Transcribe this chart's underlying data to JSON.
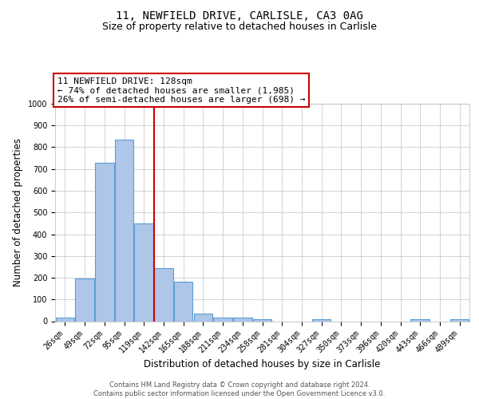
{
  "title1": "11, NEWFIELD DRIVE, CARLISLE, CA3 0AG",
  "title2": "Size of property relative to detached houses in Carlisle",
  "xlabel": "Distribution of detached houses by size in Carlisle",
  "ylabel": "Number of detached properties",
  "categories": [
    "26sqm",
    "49sqm",
    "72sqm",
    "95sqm",
    "119sqm",
    "142sqm",
    "165sqm",
    "188sqm",
    "211sqm",
    "234sqm",
    "258sqm",
    "281sqm",
    "304sqm",
    "327sqm",
    "350sqm",
    "373sqm",
    "396sqm",
    "420sqm",
    "443sqm",
    "466sqm",
    "489sqm"
  ],
  "values": [
    15,
    195,
    730,
    835,
    448,
    243,
    180,
    35,
    18,
    15,
    8,
    0,
    0,
    10,
    0,
    0,
    0,
    0,
    10,
    0,
    10
  ],
  "bar_color": "#aec6e8",
  "bar_edgecolor": "#5a9fd4",
  "bar_linewidth": 0.8,
  "vline_color": "#cc0000",
  "vline_linewidth": 1.5,
  "vline_pos": 4.5,
  "ylim": [
    0,
    1000
  ],
  "yticks": [
    0,
    100,
    200,
    300,
    400,
    500,
    600,
    700,
    800,
    900,
    1000
  ],
  "annotation_title": "11 NEWFIELD DRIVE: 128sqm",
  "annotation_line2": "← 74% of detached houses are smaller (1,985)",
  "annotation_line3": "26% of semi-detached houses are larger (698) →",
  "annotation_box_color": "#cc0000",
  "footer": "Contains HM Land Registry data © Crown copyright and database right 2024.\nContains public sector information licensed under the Open Government Licence v3.0.",
  "background_color": "#ffffff",
  "grid_color": "#cccccc",
  "title1_fontsize": 10,
  "title2_fontsize": 9,
  "xlabel_fontsize": 8.5,
  "ylabel_fontsize": 8.5,
  "tick_fontsize": 7,
  "annotation_fontsize": 8,
  "footer_fontsize": 6
}
